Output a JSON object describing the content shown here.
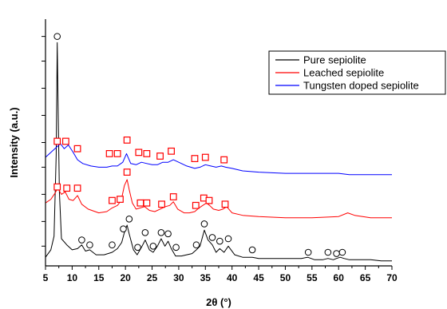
{
  "chart_data": {
    "type": "line",
    "title": "",
    "xlabel": "2θ (°)",
    "ylabel": "Intensity (a.u.)",
    "xlim": [
      5,
      70
    ],
    "ylim": [
      0,
      100
    ],
    "x_ticks": [
      5,
      10,
      15,
      20,
      25,
      30,
      35,
      40,
      45,
      50,
      55,
      60,
      65,
      70
    ],
    "x_tick_labels": [
      "5",
      "10",
      "15",
      "20",
      "25",
      "30",
      "35",
      "40",
      "45",
      "50",
      "55",
      "60",
      "65",
      "70"
    ],
    "y_ticks": [
      8,
      18,
      29,
      40,
      50,
      61,
      72,
      83,
      93
    ],
    "y_tick_labels_shown": false,
    "grid": false,
    "legend": "top-right",
    "series": [
      {
        "name": "Pure sepiolite",
        "color": "#000000",
        "x": [
          5.0,
          6.0,
          6.6,
          7.0,
          7.2,
          7.4,
          7.6,
          8.0,
          9.0,
          10.0,
          11.0,
          11.8,
          12.5,
          13.3,
          14.5,
          16.0,
          17.5,
          18.5,
          19.3,
          19.8,
          20.3,
          20.7,
          21.5,
          22.2,
          23.0,
          23.7,
          24.5,
          25.2,
          26.0,
          26.7,
          27.4,
          28.0,
          28.6,
          29.4,
          30.5,
          31.5,
          32.5,
          33.3,
          34.0,
          34.8,
          35.5,
          36.3,
          37.0,
          37.7,
          38.5,
          39.3,
          40.5,
          42.0,
          43.8,
          45.0,
          47.0,
          50.0,
          53.0,
          54.2,
          55.5,
          57.0,
          58.0,
          59.0,
          59.6,
          60.3,
          61.0,
          62.0,
          64.0,
          66.0,
          68.0,
          70.0
        ],
        "y": [
          3.5,
          6.5,
          12.0,
          45.0,
          90.5,
          60.0,
          30.0,
          11.0,
          8.5,
          6.5,
          7.0,
          8.5,
          6.0,
          6.5,
          4.5,
          4.5,
          5.5,
          7.0,
          9.5,
          13.5,
          16.5,
          13.0,
          6.5,
          4.5,
          7.5,
          10.5,
          6.5,
          5.5,
          8.0,
          11.0,
          8.0,
          10.0,
          7.0,
          4.0,
          4.0,
          4.5,
          5.0,
          6.5,
          8.0,
          14.5,
          10.5,
          8.5,
          5.5,
          7.0,
          5.5,
          8.0,
          4.5,
          3.5,
          3.5,
          3.0,
          3.0,
          3.0,
          3.0,
          3.5,
          2.5,
          2.5,
          3.0,
          2.5,
          3.0,
          3.5,
          3.0,
          2.5,
          2.5,
          2.5,
          2.0,
          2.0
        ],
        "marker": "circle",
        "marker_x": [
          7.2,
          11.8,
          13.3,
          17.5,
          19.6,
          20.7,
          22.3,
          23.7,
          25.2,
          26.7,
          28.0,
          29.5,
          33.3,
          34.8,
          36.3,
          37.7,
          39.3,
          43.8,
          54.3,
          58.0,
          59.6,
          60.7
        ],
        "marker_y": [
          93,
          10.5,
          8.5,
          8.5,
          15,
          19,
          7.5,
          13.5,
          8,
          13.5,
          13,
          7.5,
          8.5,
          17,
          11.5,
          10,
          11,
          6.5,
          5.5,
          5.5,
          5,
          5.5
        ]
      },
      {
        "name": "Leached sepiolite",
        "color": "#ff0000",
        "x": [
          5.0,
          6.0,
          6.8,
          7.3,
          8.0,
          8.7,
          9.4,
          10.2,
          11.0,
          11.8,
          13.0,
          15.0,
          16.5,
          17.5,
          18.5,
          19.2,
          19.8,
          20.3,
          20.7,
          21.3,
          22.0,
          22.8,
          23.6,
          24.5,
          25.5,
          26.5,
          27.5,
          28.3,
          29.0,
          29.8,
          31.0,
          32.0,
          33.0,
          33.8,
          34.5,
          35.2,
          35.8,
          36.5,
          37.5,
          38.3,
          39.0,
          40.0,
          42.0,
          45.0,
          50.0,
          55.0,
          60.0,
          61.7,
          63.0,
          66.0,
          68.0,
          70.0
        ],
        "y": [
          25.5,
          27.0,
          29.5,
          31.5,
          29.0,
          30.0,
          27.0,
          26.5,
          28.5,
          25.0,
          23.0,
          21.5,
          22.0,
          23.5,
          24.5,
          26.5,
          32.5,
          35.0,
          31.0,
          25.5,
          23.0,
          23.5,
          24.0,
          22.5,
          22.0,
          23.0,
          24.0,
          24.5,
          26.0,
          23.0,
          21.5,
          21.5,
          22.0,
          23.5,
          24.5,
          25.5,
          24.5,
          23.0,
          22.5,
          23.0,
          24.0,
          21.5,
          20.5,
          20.0,
          19.5,
          19.5,
          20.0,
          21.5,
          20.5,
          19.5,
          19.5,
          19.5
        ],
        "marker": "square",
        "marker_x": [
          7.2,
          9.0,
          11.0,
          17.5,
          19.0,
          20.3,
          22.8,
          24.0,
          26.8,
          29.0,
          33.2,
          34.7,
          35.7,
          38.7
        ],
        "marker_y": [
          32,
          31.5,
          31.5,
          26.5,
          27,
          38,
          25.5,
          25.5,
          25,
          28,
          24.5,
          27.5,
          26.5,
          25
        ]
      },
      {
        "name": "Tungsten doped sepiolite",
        "color": "#0000ff",
        "x": [
          5.0,
          6.0,
          7.0,
          7.8,
          8.5,
          9.3,
          10.2,
          11.0,
          12.0,
          13.5,
          15.0,
          16.5,
          17.5,
          18.5,
          19.5,
          20.2,
          21.0,
          22.0,
          23.0,
          24.0,
          25.0,
          26.0,
          27.0,
          28.0,
          29.0,
          30.0,
          31.5,
          33.0,
          34.0,
          35.0,
          36.0,
          37.0,
          38.0,
          38.8,
          40.0,
          42.0,
          45.0,
          50.0,
          55.0,
          60.0,
          62.0,
          65.0,
          68.0,
          70.0
        ],
        "y": [
          44.0,
          46.0,
          48.0,
          49.5,
          47.5,
          49.0,
          46.0,
          43.0,
          41.5,
          40.5,
          40.0,
          40.0,
          40.5,
          40.5,
          42.0,
          45.5,
          41.5,
          41.0,
          42.0,
          41.5,
          41.0,
          41.0,
          42.0,
          42.0,
          43.0,
          42.0,
          40.5,
          39.5,
          40.0,
          41.0,
          40.5,
          40.0,
          40.5,
          40.0,
          39.5,
          38.5,
          38.0,
          37.5,
          37.5,
          37.5,
          37.0,
          37.0,
          37.0,
          37.0
        ],
        "marker": "square",
        "marker_x": [
          7.2,
          8.8,
          11.0,
          17.0,
          18.5,
          20.3,
          22.5,
          24.0,
          26.5,
          28.6,
          33.0,
          35.0,
          38.5
        ],
        "marker_y": [
          50.5,
          50.5,
          47.5,
          45.5,
          45.5,
          51,
          46,
          45.5,
          44.5,
          46.5,
          43.5,
          44,
          43
        ]
      }
    ]
  }
}
